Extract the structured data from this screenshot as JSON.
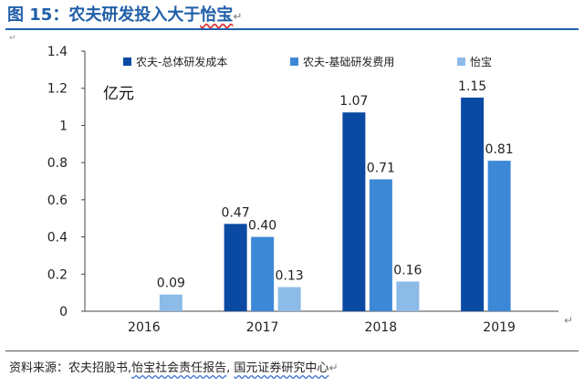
{
  "header": {
    "figure_label": "图 15：",
    "title_main": "农夫研发投入大于",
    "title_underlined": "怡宝"
  },
  "source": {
    "prefix": "资料来源：农夫招股书,",
    "underlined": "怡宝社会责任报告",
    "middle": ", ",
    "underlined2": "国元证券研究中心"
  },
  "chart_data": {
    "type": "bar",
    "unit_label": "亿元",
    "categories": [
      "2016",
      "2017",
      "2018",
      "2019"
    ],
    "ylim": [
      0,
      1.4
    ],
    "yticks": [
      "0",
      "0.2",
      "0.4",
      "0.6",
      "0.8",
      "1",
      "1.2",
      "1.4"
    ],
    "grid": false,
    "legend_position": "top",
    "series": [
      {
        "name": "农夫-总体研发成本",
        "color": "#0b4aa2",
        "values": [
          null,
          0.47,
          1.07,
          1.15
        ],
        "labels": [
          "",
          "0.47",
          "1.07",
          "1.15"
        ]
      },
      {
        "name": "农夫-基础研发费用",
        "color": "#3d88d6",
        "values": [
          null,
          0.4,
          0.71,
          0.81
        ],
        "labels": [
          "",
          "0.40",
          "0.71",
          "0.81"
        ]
      },
      {
        "name": "怡宝",
        "color": "#8dbbe8",
        "values": [
          0.09,
          0.13,
          0.16,
          null
        ],
        "labels": [
          "0.09",
          "0.13",
          "0.16",
          ""
        ]
      }
    ]
  }
}
